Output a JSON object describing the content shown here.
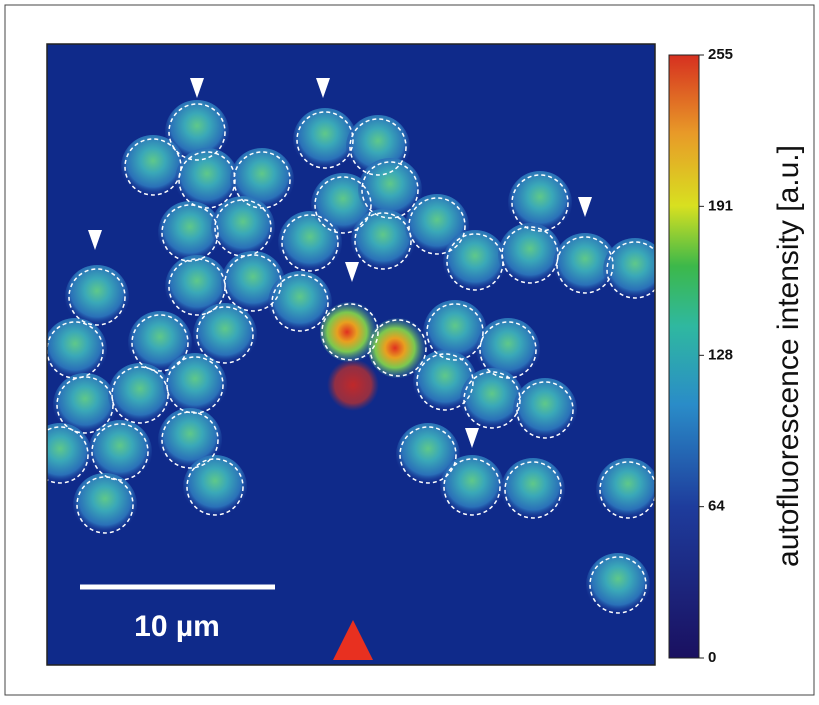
{
  "image": {
    "scale_bar_label": "10 µm"
  },
  "colorbar": {
    "label": "autofluorescence intensity [a.u.]",
    "range": [
      0,
      255
    ],
    "ticks": [
      0,
      64,
      128,
      191,
      255
    ]
  }
}
